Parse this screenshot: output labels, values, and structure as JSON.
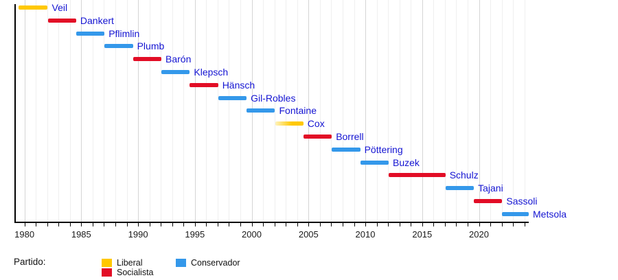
{
  "chart_data": {
    "type": "timeline",
    "title": "",
    "description": "Gantt-style timeline of Presidents of the European Parliament colored by party",
    "xlim": [
      1979.18,
      2024.38
    ],
    "x_tick_years_labeled": [
      1980,
      1985,
      1990,
      1995,
      2000,
      2005,
      2010,
      2015,
      2020
    ],
    "x_minor_tick_every_years": 1,
    "grid": {
      "vertical_yearly": true,
      "major_every_years": 5,
      "legend_position": "bottom-left"
    },
    "legend_title": "Partido:",
    "label_color": "#1414D2",
    "axis_color": "#000000",
    "parties": [
      {
        "id": "liberal",
        "label": "Liberal",
        "color": "#FFC800"
      },
      {
        "id": "socialista",
        "label": "Socialista",
        "color": "#E20D26"
      },
      {
        "id": "conservador",
        "label": "Conservador",
        "color": "#3498EA"
      }
    ],
    "presidents": [
      {
        "name": "Veil",
        "party": "liberal",
        "start": 1979.5,
        "end": 1982.05
      },
      {
        "name": "Dankert",
        "party": "socialista",
        "start": 1982.05,
        "end": 1984.55
      },
      {
        "name": "Pflimlin",
        "party": "conservador",
        "start": 1984.55,
        "end": 1987.05
      },
      {
        "name": "Plumb",
        "party": "conservador",
        "start": 1987.05,
        "end": 1989.55
      },
      {
        "name": "Barón",
        "party": "socialista",
        "start": 1989.55,
        "end": 1992.05
      },
      {
        "name": "Klepsch",
        "party": "conservador",
        "start": 1992.05,
        "end": 1994.55
      },
      {
        "name": "Hänsch",
        "party": "socialista",
        "start": 1994.55,
        "end": 1997.05
      },
      {
        "name": "Gil-Robles",
        "party": "conservador",
        "start": 1997.05,
        "end": 1999.55
      },
      {
        "name": "Fontaine",
        "party": "conservador",
        "start": 1999.55,
        "end": 2002.05
      },
      {
        "name": "Cox",
        "party": "liberal",
        "start": 2002.05,
        "end": 2004.55,
        "fade_left": true
      },
      {
        "name": "Borrell",
        "party": "socialista",
        "start": 2004.55,
        "end": 2007.05
      },
      {
        "name": "Pöttering",
        "party": "conservador",
        "start": 2007.05,
        "end": 2009.55
      },
      {
        "name": "Buzek",
        "party": "conservador",
        "start": 2009.55,
        "end": 2012.05
      },
      {
        "name": "Schulz",
        "party": "socialista",
        "start": 2012.05,
        "end": 2017.05
      },
      {
        "name": "Tajani",
        "party": "conservador",
        "start": 2017.05,
        "end": 2019.55
      },
      {
        "name": "Sassoli",
        "party": "socialista",
        "start": 2019.55,
        "end": 2022.05
      },
      {
        "name": "Metsola",
        "party": "conservador",
        "start": 2022.05,
        "end": 2024.38
      }
    ]
  }
}
